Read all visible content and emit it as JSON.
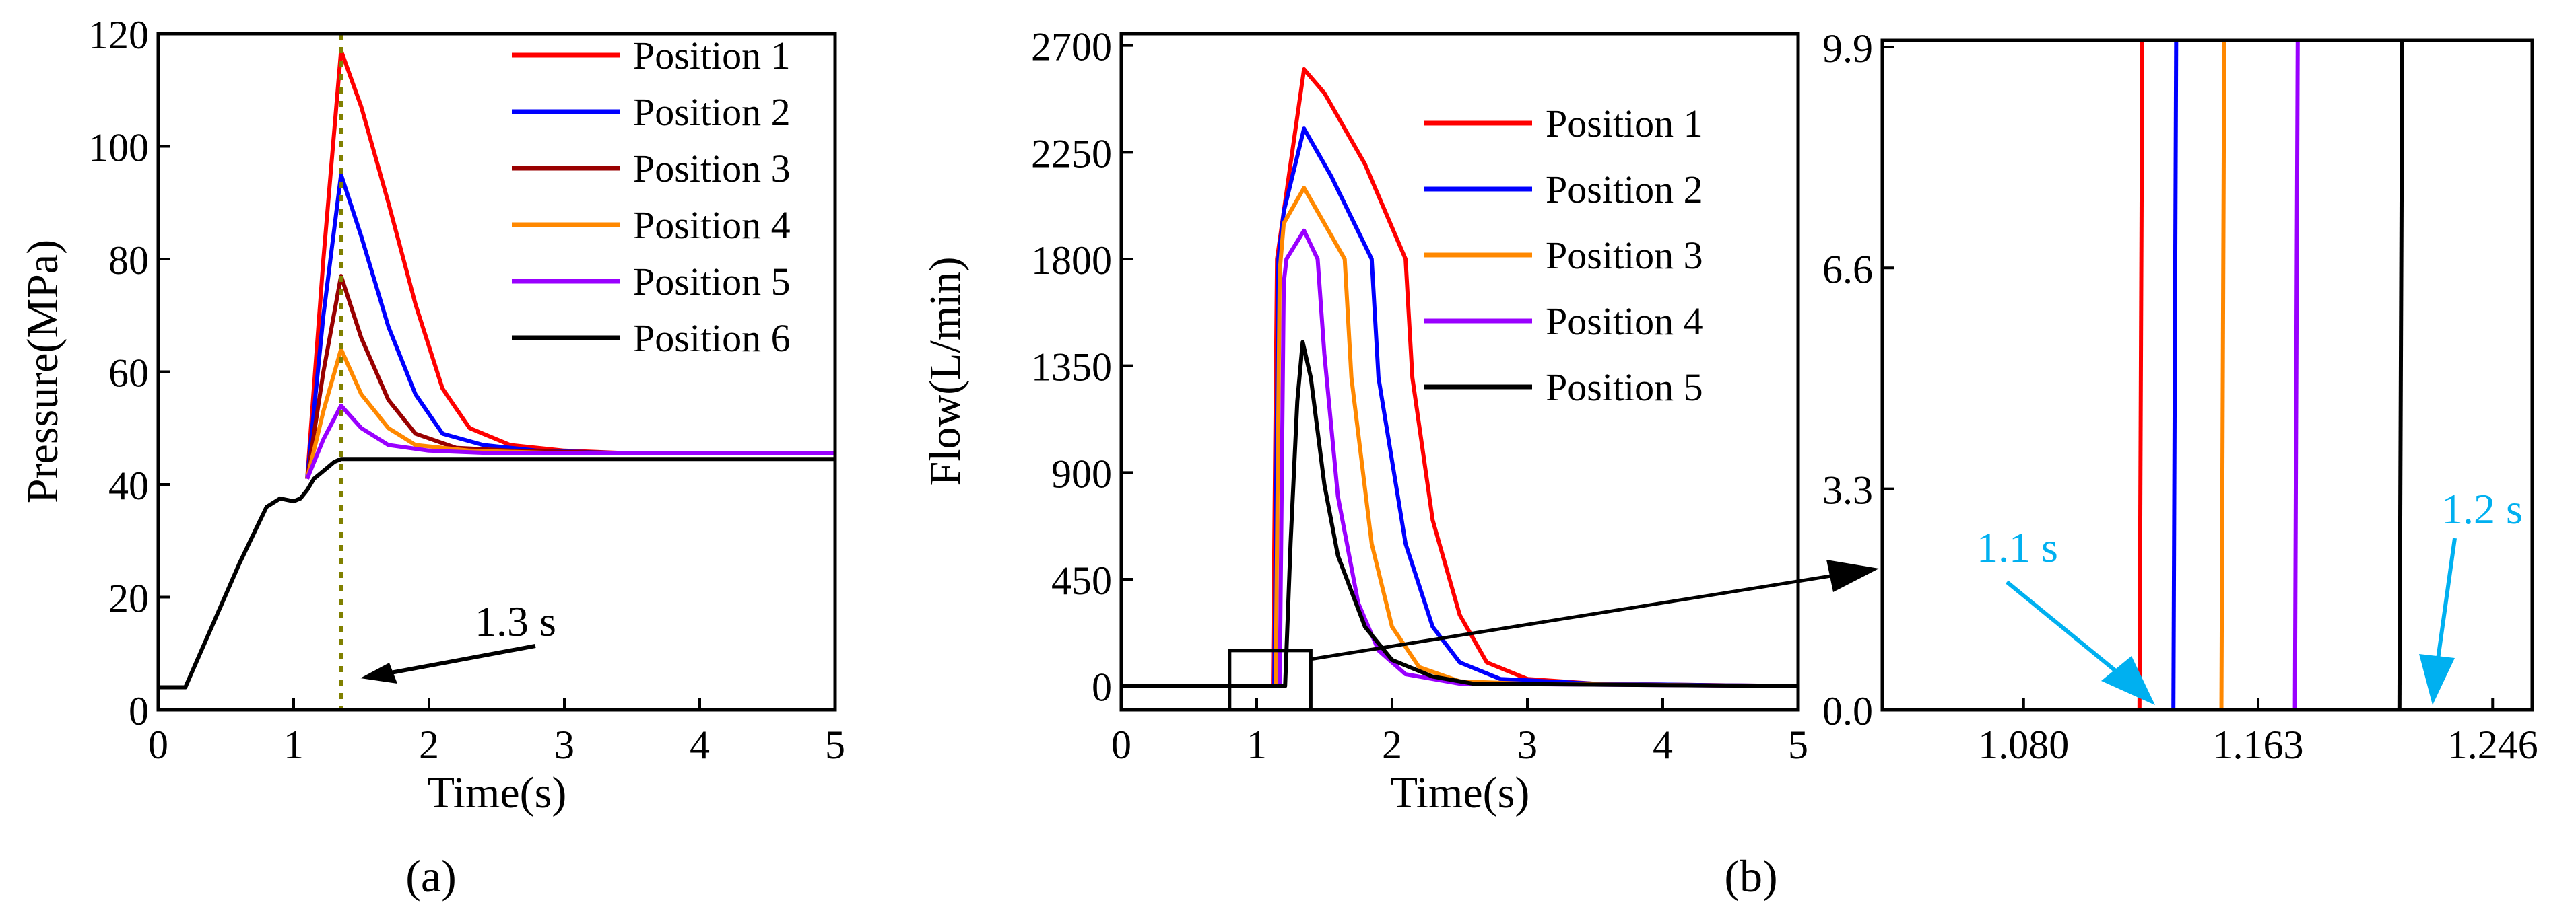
{
  "chart_data": [
    {
      "id": "a",
      "type": "line",
      "panel_label": "(a)",
      "xlabel": "Time(s)",
      "ylabel": "Pressure(MPa)",
      "xlim": [
        0,
        5
      ],
      "ylim": [
        0,
        120
      ],
      "xticks": [
        0,
        1,
        2,
        3,
        4,
        5
      ],
      "yticks": [
        0,
        20,
        40,
        60,
        80,
        100,
        120
      ],
      "legend_position": "top-right",
      "annotation": {
        "text": "1.3 s",
        "x": 1.35
      },
      "colors": {
        "Position 1": "#ff0000",
        "Position 2": "#0000ff",
        "Position 3": "#990000",
        "Position 4": "#ff8800",
        "Position 5": "#9900ff",
        "Position 6": "#000000"
      },
      "series": [
        {
          "name": "Position 1",
          "x": [
            1.1,
            1.22,
            1.35,
            1.5,
            1.7,
            1.9,
            2.1,
            2.3,
            2.6,
            3.0,
            3.5,
            4.0,
            5.0
          ],
          "values": [
            41,
            80,
            117,
            107,
            90,
            72,
            57,
            50,
            47,
            46,
            45.5,
            45.5,
            45.5
          ]
        },
        {
          "name": "Position 2",
          "x": [
            1.1,
            1.22,
            1.35,
            1.5,
            1.7,
            1.9,
            2.1,
            2.4,
            2.8,
            3.5,
            5.0
          ],
          "values": [
            41,
            70,
            95,
            84,
            68,
            56,
            49,
            47,
            46,
            45.5,
            45.5
          ]
        },
        {
          "name": "Position 3",
          "x": [
            1.1,
            1.22,
            1.35,
            1.5,
            1.7,
            1.9,
            2.2,
            2.6,
            3.5,
            5.0
          ],
          "values": [
            41,
            60,
            77,
            66,
            55,
            49,
            46.5,
            46,
            45.5,
            45.5
          ]
        },
        {
          "name": "Position 4",
          "x": [
            1.1,
            1.22,
            1.35,
            1.5,
            1.7,
            1.9,
            2.3,
            3.0,
            5.0
          ],
          "values": [
            41,
            53,
            64,
            56,
            50,
            47,
            46,
            45.5,
            45.5
          ]
        },
        {
          "name": "Position 5",
          "x": [
            1.1,
            1.22,
            1.35,
            1.5,
            1.7,
            2.0,
            2.5,
            3.0,
            5.0
          ],
          "values": [
            41,
            48,
            54,
            50,
            47,
            46,
            45.5,
            45.5,
            45.5
          ]
        },
        {
          "name": "Position 6",
          "x": [
            0,
            0.1,
            0.2,
            0.4,
            0.6,
            0.8,
            0.9,
            1.0,
            1.05,
            1.1,
            1.15,
            1.2,
            1.25,
            1.3,
            1.35,
            1.4,
            1.6,
            2.0,
            3.0,
            5.0
          ],
          "values": [
            4,
            4,
            4,
            15,
            26,
            36,
            37.5,
            37,
            37.5,
            39,
            41,
            42,
            43,
            44,
            44.5,
            44.5,
            44.5,
            44.5,
            44.5,
            44.5
          ]
        }
      ]
    },
    {
      "id": "b",
      "type": "line",
      "panel_label": "(b)",
      "xlabel": "Time(s)",
      "ylabel": "Flow(L/min)",
      "xlim": [
        0,
        5
      ],
      "ylim": [
        -100,
        2750
      ],
      "xticks": [
        0,
        1,
        2,
        3,
        4,
        5
      ],
      "yticks": [
        0,
        450,
        900,
        1350,
        1800,
        2250,
        2700
      ],
      "legend_position": "top-right",
      "zoom_box": {
        "x": [
          0.8,
          1.4
        ],
        "y": [
          -100,
          150
        ]
      },
      "colors": {
        "Position 1": "#ff0000",
        "Position 2": "#0000ff",
        "Position 3": "#ff8800",
        "Position 4": "#9900ff",
        "Position 5": "#000000"
      },
      "series": [
        {
          "name": "Position 1",
          "x": [
            0,
            1.12,
            1.15,
            1.2,
            1.35,
            1.5,
            1.8,
            2.1,
            2.15,
            2.3,
            2.5,
            2.7,
            3.0,
            3.5,
            5.0
          ],
          "values": [
            0,
            0,
            1800,
            2000,
            2600,
            2500,
            2200,
            1800,
            1300,
            700,
            300,
            100,
            30,
            10,
            0
          ]
        },
        {
          "name": "Position 2",
          "x": [
            0,
            1.13,
            1.16,
            1.2,
            1.35,
            1.55,
            1.85,
            1.9,
            2.1,
            2.3,
            2.5,
            2.8,
            3.5,
            5.0
          ],
          "values": [
            0,
            0,
            1800,
            2000,
            2350,
            2150,
            1800,
            1300,
            600,
            250,
            100,
            30,
            10,
            0
          ]
        },
        {
          "name": "Position 3",
          "x": [
            0,
            1.14,
            1.17,
            1.2,
            1.35,
            1.5,
            1.65,
            1.7,
            1.85,
            2.0,
            2.2,
            2.5,
            3.0,
            5.0
          ],
          "values": [
            0,
            0,
            1750,
            1950,
            2100,
            1950,
            1800,
            1300,
            600,
            250,
            80,
            20,
            10,
            0
          ]
        },
        {
          "name": "Position 4",
          "x": [
            0,
            1.17,
            1.2,
            1.22,
            1.35,
            1.45,
            1.5,
            1.6,
            1.75,
            1.9,
            2.1,
            2.5,
            5.0
          ],
          "values": [
            0,
            0,
            1700,
            1800,
            1920,
            1800,
            1400,
            800,
            350,
            150,
            50,
            10,
            0
          ]
        },
        {
          "name": "Position 5",
          "x": [
            0,
            1.21,
            1.25,
            1.3,
            1.34,
            1.4,
            1.5,
            1.6,
            1.8,
            2.0,
            2.3,
            2.6,
            5.0
          ],
          "values": [
            0,
            0,
            600,
            1200,
            1450,
            1300,
            850,
            550,
            250,
            110,
            40,
            10,
            0
          ]
        }
      ]
    },
    {
      "id": "b-inset",
      "type": "line",
      "xlim": [
        1.03,
        1.26
      ],
      "ylim": [
        0,
        10
      ],
      "xticks": [
        1.08,
        1.163,
        1.246
      ],
      "xtick_labels": [
        "1.080",
        "1.163",
        "1.246"
      ],
      "yticks": [
        0.0,
        3.3,
        6.6,
        9.9
      ],
      "ytick_labels": [
        "0.0",
        "3.3",
        "6.6",
        "9.9"
      ],
      "annotations": [
        {
          "text": "1.1 s",
          "color": "#00b0f0",
          "x": 1.12
        },
        {
          "text": "1.2 s",
          "color": "#00b0f0",
          "x": 1.21
        }
      ],
      "series": [
        {
          "name": "Position 1",
          "color": "#ff0000",
          "x": [
            1.121,
            1.122
          ],
          "values": [
            0,
            10
          ]
        },
        {
          "name": "Position 2",
          "color": "#0000ff",
          "x": [
            1.133,
            1.134
          ],
          "values": [
            0,
            10
          ]
        },
        {
          "name": "Position 3",
          "color": "#ff8800",
          "x": [
            1.15,
            1.151
          ],
          "values": [
            0,
            10
          ]
        },
        {
          "name": "Position 4",
          "color": "#9900ff",
          "x": [
            1.176,
            1.177
          ],
          "values": [
            0,
            10
          ]
        },
        {
          "name": "Position 5",
          "color": "#000000",
          "x": [
            1.213,
            1.214
          ],
          "values": [
            0,
            10
          ]
        }
      ]
    }
  ]
}
